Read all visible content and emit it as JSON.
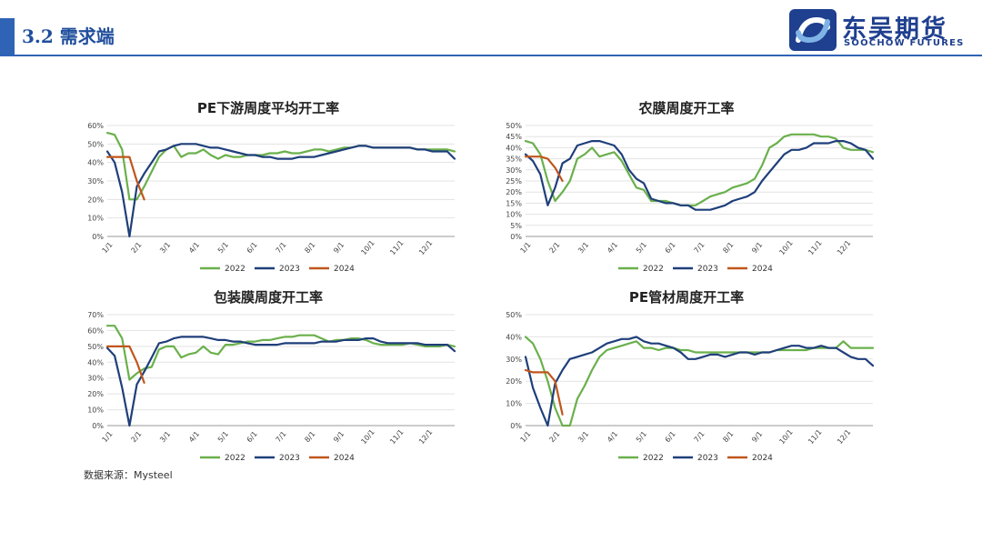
{
  "header": {
    "title": "3.2 需求端"
  },
  "logo": {
    "name_cn": "东吴期货",
    "name_en": "SOOCHOW FUTURES"
  },
  "colors": {
    "accent": "#2f63b5",
    "s2022": "#6ab04c",
    "s2023": "#1f3f7a",
    "s2024": "#c0561c"
  },
  "source": "数据来源：Mysteel",
  "chart_data": [
    {
      "type": "line",
      "title": "PE下游周度平均开工率",
      "ylim": [
        0,
        60
      ],
      "ystep": 10,
      "yticks": [
        "0%",
        "10%",
        "20%",
        "30%",
        "40%",
        "50%",
        "60%"
      ],
      "xticks": [
        "1/1",
        "2/1",
        "3/1",
        "4/1",
        "5/1",
        "6/1",
        "7/1",
        "8/1",
        "9/1",
        "10/1",
        "11/1",
        "12/1"
      ],
      "legend": [
        "2022",
        "2023",
        "2024"
      ],
      "series": [
        {
          "name": "2022",
          "values": [
            56,
            55,
            47,
            20,
            20,
            27,
            35,
            43,
            47,
            49,
            43,
            45,
            45,
            47,
            44,
            42,
            44,
            43,
            43,
            44,
            44,
            44,
            45,
            45,
            46,
            45,
            45,
            46,
            47,
            47,
            46,
            47,
            48,
            48,
            49,
            49,
            48,
            48,
            48,
            48,
            48,
            48,
            47,
            47,
            47,
            47,
            47,
            46
          ]
        },
        {
          "name": "2023",
          "values": [
            46,
            40,
            24,
            0,
            27,
            34,
            40,
            46,
            47,
            49,
            50,
            50,
            50,
            49,
            48,
            48,
            47,
            46,
            45,
            44,
            44,
            43,
            43,
            42,
            42,
            42,
            43,
            43,
            43,
            44,
            45,
            46,
            47,
            48,
            49,
            49,
            48,
            48,
            48,
            48,
            48,
            48,
            47,
            47,
            46,
            46,
            46,
            42
          ]
        },
        {
          "name": "2024",
          "values": [
            43,
            43,
            43,
            43,
            30,
            20
          ]
        }
      ]
    },
    {
      "type": "line",
      "title": "农膜周度开工率",
      "ylim": [
        0,
        50
      ],
      "ystep": 5,
      "yticks": [
        "0%",
        "5%",
        "10%",
        "15%",
        "20%",
        "25%",
        "30%",
        "35%",
        "40%",
        "45%",
        "50%"
      ],
      "xticks": [
        "1/1",
        "2/1",
        "3/1",
        "4/1",
        "5/1",
        "6/1",
        "7/1",
        "8/1",
        "9/1",
        "10/1",
        "11/1",
        "12/1"
      ],
      "legend": [
        "2022",
        "2023",
        "2024"
      ],
      "series": [
        {
          "name": "2022",
          "values": [
            43,
            42,
            37,
            25,
            16,
            20,
            25,
            35,
            37,
            40,
            36,
            37,
            38,
            34,
            28,
            22,
            21,
            16,
            16,
            16,
            15,
            14,
            14,
            14,
            16,
            18,
            19,
            20,
            22,
            23,
            24,
            26,
            32,
            40,
            42,
            45,
            46,
            46,
            46,
            46,
            45,
            45,
            44,
            40,
            39,
            39,
            39,
            38
          ]
        },
        {
          "name": "2023",
          "values": [
            37,
            34,
            28,
            14,
            22,
            33,
            35,
            41,
            42,
            43,
            43,
            42,
            41,
            37,
            30,
            26,
            24,
            17,
            16,
            15,
            15,
            14,
            14,
            12,
            12,
            12,
            13,
            14,
            16,
            17,
            18,
            20,
            25,
            29,
            33,
            37,
            39,
            39,
            40,
            42,
            42,
            42,
            43,
            43,
            42,
            40,
            39,
            35
          ]
        },
        {
          "name": "2024",
          "values": [
            36,
            36,
            36,
            35,
            31,
            25
          ]
        }
      ]
    },
    {
      "type": "line",
      "title": "包装膜周度开工率",
      "ylim": [
        0,
        70
      ],
      "ystep": 10,
      "yticks": [
        "0%",
        "10%",
        "20%",
        "30%",
        "40%",
        "50%",
        "60%",
        "70%"
      ],
      "xticks": [
        "1/1",
        "2/1",
        "3/1",
        "4/1",
        "5/1",
        "6/1",
        "7/1",
        "8/1",
        "9/1",
        "10/1",
        "11/1",
        "12/1"
      ],
      "legend": [
        "2022",
        "2023",
        "2024"
      ],
      "series": [
        {
          "name": "2022",
          "values": [
            63,
            63,
            55,
            29,
            33,
            36,
            37,
            48,
            50,
            50,
            43,
            45,
            46,
            50,
            46,
            45,
            51,
            51,
            52,
            53,
            53,
            54,
            54,
            55,
            56,
            56,
            57,
            57,
            57,
            55,
            53,
            54,
            54,
            55,
            55,
            54,
            52,
            51,
            51,
            51,
            51,
            52,
            51,
            50,
            50,
            50,
            51,
            50
          ]
        },
        {
          "name": "2023",
          "values": [
            49,
            44,
            24,
            0,
            26,
            34,
            43,
            52,
            53,
            55,
            56,
            56,
            56,
            56,
            55,
            54,
            54,
            53,
            53,
            52,
            51,
            51,
            51,
            51,
            52,
            52,
            52,
            52,
            52,
            53,
            53,
            53,
            54,
            54,
            54,
            55,
            55,
            53,
            52,
            52,
            52,
            52,
            52,
            51,
            51,
            51,
            51,
            47
          ]
        },
        {
          "name": "2024",
          "values": [
            50,
            50,
            50,
            50,
            40,
            27
          ]
        }
      ]
    },
    {
      "type": "line",
      "title": "PE管材周度开工率",
      "ylim": [
        0,
        50
      ],
      "ystep": 10,
      "yticks": [
        "0%",
        "10%",
        "20%",
        "30%",
        "40%",
        "50%"
      ],
      "xticks": [
        "1/1",
        "2/1",
        "3/1",
        "4/1",
        "5/1",
        "6/1",
        "7/1",
        "8/1",
        "9/1",
        "10/1",
        "11/1",
        "12/1"
      ],
      "legend": [
        "2022",
        "2023",
        "2024"
      ],
      "series": [
        {
          "name": "2022",
          "values": [
            40,
            37,
            30,
            20,
            8,
            0,
            0,
            12,
            18,
            25,
            31,
            34,
            35,
            36,
            37,
            38,
            35,
            35,
            34,
            35,
            35,
            34,
            34,
            33,
            33,
            33,
            33,
            33,
            33,
            33,
            33,
            33,
            33,
            33,
            34,
            34,
            34,
            34,
            34,
            35,
            35,
            35,
            35,
            38,
            35,
            35,
            35,
            35
          ]
        },
        {
          "name": "2023",
          "values": [
            31,
            17,
            8,
            0,
            19,
            25,
            30,
            31,
            32,
            33,
            35,
            37,
            38,
            39,
            39,
            40,
            38,
            37,
            37,
            36,
            35,
            33,
            30,
            30,
            31,
            32,
            32,
            31,
            32,
            33,
            33,
            32,
            33,
            33,
            34,
            35,
            36,
            36,
            35,
            35,
            36,
            35,
            35,
            33,
            31,
            30,
            30,
            27
          ]
        },
        {
          "name": "2024",
          "values": [
            25,
            24,
            24,
            24,
            20,
            5
          ]
        }
      ]
    }
  ]
}
